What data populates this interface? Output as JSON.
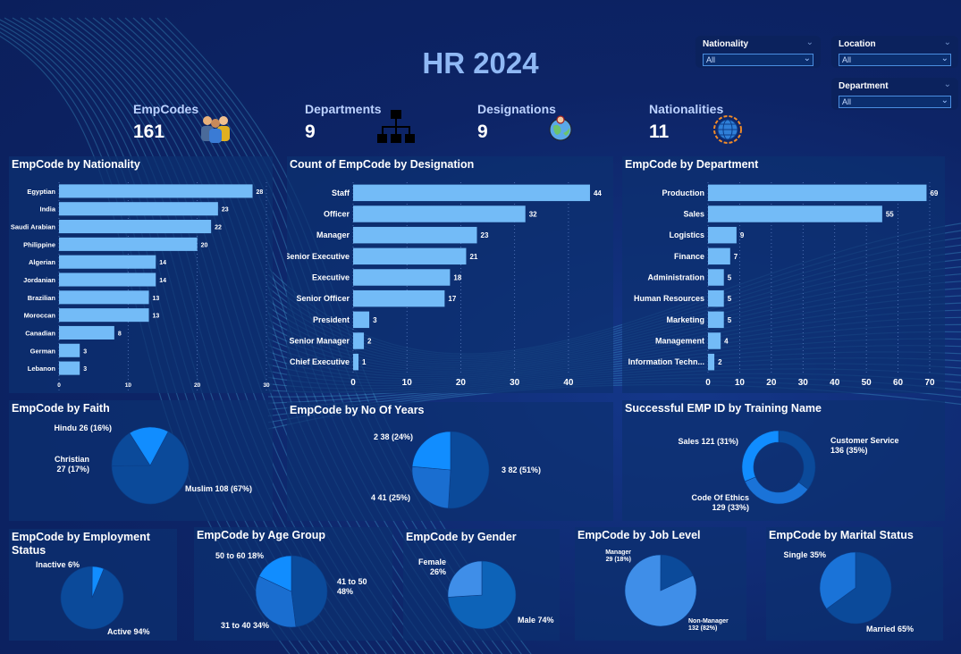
{
  "header": {
    "title": "HR 2024"
  },
  "filters": [
    {
      "label": "Nationality",
      "value": "All"
    },
    {
      "label": "Location",
      "value": "All"
    },
    {
      "label": "Department",
      "value": "All"
    }
  ],
  "kpis": [
    {
      "label": "EmpCodes",
      "value": "161",
      "icon": "people-icon"
    },
    {
      "label": "Departments",
      "value": "9",
      "icon": "org-chart-icon"
    },
    {
      "label": "Designations",
      "value": "9",
      "icon": "globe-person-icon"
    },
    {
      "label": "Nationalities",
      "value": "11",
      "icon": "globe-icon"
    }
  ],
  "colors": {
    "bar": "#73bbf7",
    "pie_dark": "#0b4a9a",
    "pie_mid": "#1a73d8",
    "pie_bright": "#118dff",
    "pie_light": "#3f8ee8"
  },
  "chart_data": [
    {
      "id": "nationality",
      "type": "bar",
      "orientation": "horizontal",
      "title": "EmpCode by Nationality",
      "categories": [
        "Egyptian",
        "India",
        "Saudi Arabian",
        "Philippine",
        "Algerian",
        "Jordanian",
        "Brazilian",
        "Moroccan",
        "Canadian",
        "German",
        "Lebanon"
      ],
      "values": [
        28,
        23,
        22,
        20,
        14,
        14,
        13,
        13,
        8,
        3,
        3
      ],
      "xlim": [
        0,
        30
      ],
      "ticks": [
        0,
        10,
        20,
        30
      ],
      "grid": true
    },
    {
      "id": "designation",
      "type": "bar",
      "orientation": "horizontal",
      "title": "Count of EmpCode by Designation",
      "categories": [
        "Staff",
        "Officer",
        "Manager",
        "Senior Executive",
        "Executive",
        "Senior Officer",
        "President",
        "Senior Manager",
        "Chief Executive"
      ],
      "values": [
        44,
        32,
        23,
        21,
        18,
        17,
        3,
        2,
        1
      ],
      "xlim": [
        0,
        45
      ],
      "ticks": [
        0,
        10,
        20,
        30,
        40
      ],
      "grid": true
    },
    {
      "id": "department",
      "type": "bar",
      "orientation": "horizontal",
      "title": "EmpCode by Department",
      "categories": [
        "Production",
        "Sales",
        "Logistics",
        "Finance",
        "Administration",
        "Human Resources",
        "Marketing",
        "Management",
        "Information Techn..."
      ],
      "values": [
        69,
        55,
        9,
        7,
        5,
        5,
        5,
        4,
        2
      ],
      "xlim": [
        0,
        70
      ],
      "ticks": [
        0,
        10,
        20,
        30,
        40,
        50,
        60,
        70
      ],
      "grid": true
    },
    {
      "id": "faith",
      "type": "pie",
      "title": "EmpCode by Faith",
      "slices": [
        {
          "name": "Muslim",
          "value": 108,
          "label": "Muslim 108 (67%)"
        },
        {
          "name": "Hindu",
          "value": 26,
          "label": "Hindu 26 (16%)"
        },
        {
          "name": "Christian",
          "value": 27,
          "label": "Christian\n27 (17%)"
        }
      ]
    },
    {
      "id": "years",
      "type": "pie",
      "title": "EmpCode by No Of Years",
      "slices": [
        {
          "name": "3",
          "value": 82,
          "label": "3 82 (51%)"
        },
        {
          "name": "4",
          "value": 41,
          "label": "4 41 (25%)"
        },
        {
          "name": "2",
          "value": 38,
          "label": "2 38 (24%)"
        }
      ]
    },
    {
      "id": "training",
      "type": "pie",
      "donut": true,
      "title": "Successful EMP ID by Training Name",
      "slices": [
        {
          "name": "Customer Service",
          "value": 136,
          "label": "Customer Service\n136 (35%)"
        },
        {
          "name": "Code Of Ethics",
          "value": 129,
          "label": "Code Of Ethics\n129 (33%)"
        },
        {
          "name": "Sales",
          "value": 121,
          "label": "Sales 121 (31%)"
        }
      ]
    },
    {
      "id": "employment",
      "type": "pie",
      "title": "EmpCode by Employment\nStatus",
      "slices": [
        {
          "name": "Active",
          "value": 94,
          "label": "Active 94%"
        },
        {
          "name": "Inactive",
          "value": 6,
          "label": "Inactive 6%"
        }
      ]
    },
    {
      "id": "age",
      "type": "pie",
      "title": "EmpCode by Age Group",
      "slices": [
        {
          "name": "41 to 50",
          "value": 48,
          "label": "41 to 50\n48%"
        },
        {
          "name": "31 to 40",
          "value": 34,
          "label": "31 to 40 34%"
        },
        {
          "name": "50 to 60",
          "value": 18,
          "label": "50 to 60 18%"
        }
      ]
    },
    {
      "id": "gender",
      "type": "pie",
      "title": "EmpCode by Gender",
      "slices": [
        {
          "name": "Male",
          "value": 74,
          "label": "Male 74%"
        },
        {
          "name": "Female",
          "value": 26,
          "label": "Female\n26%"
        }
      ]
    },
    {
      "id": "joblevel",
      "type": "pie",
      "title": "EmpCode by Job Level",
      "slices": [
        {
          "name": "Non-Manager",
          "value": 82,
          "label": "Non-Manager\n132 (82%)"
        },
        {
          "name": "Manager",
          "value": 18,
          "label": "Manager\n29 (18%)"
        }
      ]
    },
    {
      "id": "marital",
      "type": "pie",
      "title": "EmpCode by Marital Status",
      "slices": [
        {
          "name": "Married",
          "value": 65,
          "label": "Married 65%"
        },
        {
          "name": "Single",
          "value": 35,
          "label": "Single 35%"
        }
      ]
    }
  ]
}
